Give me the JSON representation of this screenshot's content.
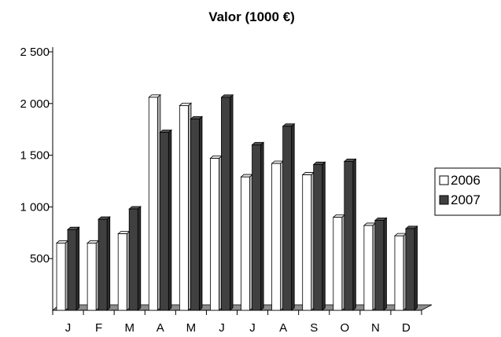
{
  "chart_data": {
    "type": "bar",
    "title": "Valor (1000 €)",
    "xlabel": "",
    "ylabel": "",
    "categories": [
      "J",
      "F",
      "M",
      "A",
      "M",
      "J",
      "J",
      "A",
      "S",
      "O",
      "N",
      "D"
    ],
    "series": [
      {
        "name": "2006",
        "values": [
          650,
          650,
          740,
          2060,
          1980,
          1470,
          1290,
          1420,
          1310,
          900,
          820,
          720
        ],
        "color": "#ffffff"
      },
      {
        "name": "2007",
        "values": [
          780,
          880,
          980,
          1720,
          1850,
          2060,
          1600,
          1780,
          1410,
          1440,
          870,
          790
        ],
        "color": "#404040"
      }
    ],
    "yticks": [
      "2 500",
      "2 000",
      "1 500",
      "1 000",
      "500"
    ],
    "ytick_values": [
      2500,
      2000,
      1500,
      1000,
      500
    ],
    "ylim": [
      0,
      2500
    ],
    "grid": false,
    "legend_position": "right",
    "style": "3d-clustered-column"
  }
}
